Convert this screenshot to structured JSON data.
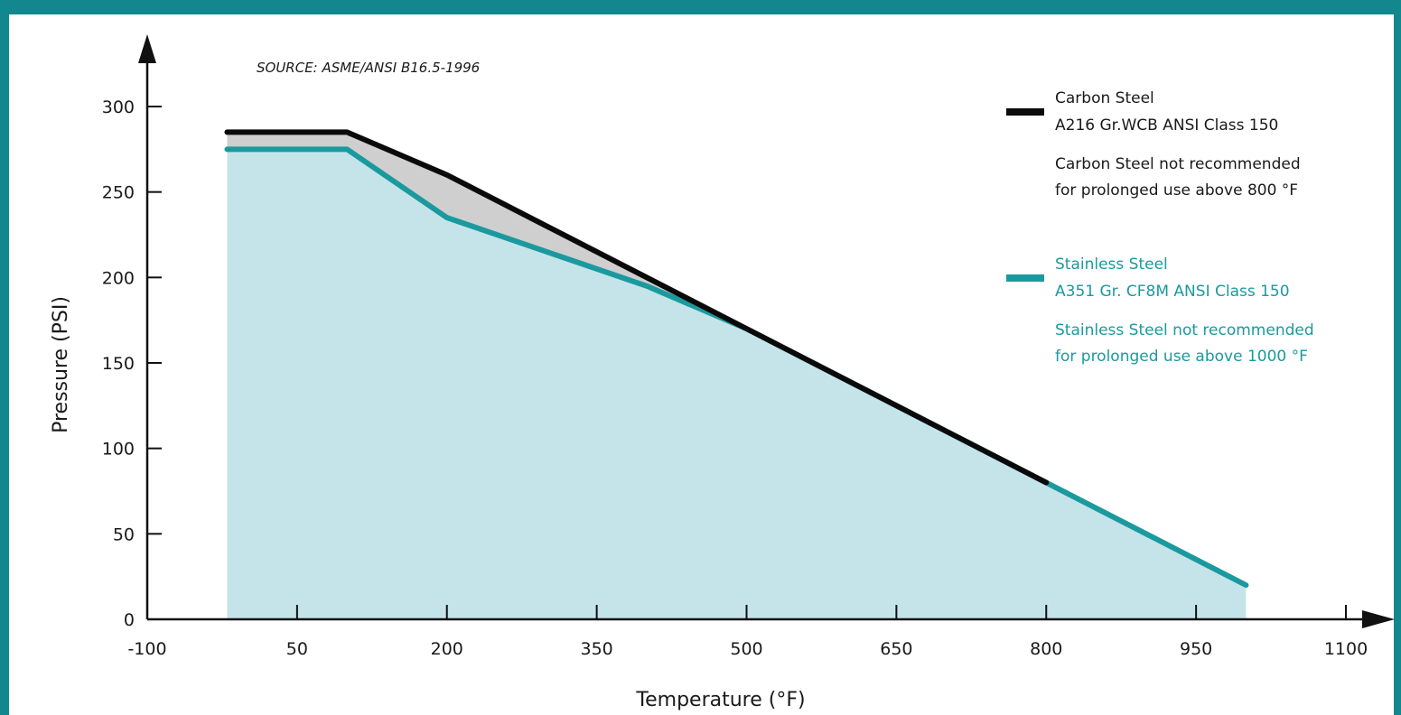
{
  "colors": {
    "frame": "#12888e",
    "carbon": "#0a0a0a",
    "stainless": "#1a9a9e",
    "fill": "#c5e4ea",
    "gap_fill": "#cfcfcf"
  },
  "chart_data": {
    "type": "area",
    "source": "SOURCE: ASME/ANSI B16.5-1996",
    "xlabel": "Temperature (°F)",
    "ylabel": "Pressure (PSI)",
    "xlim": [
      -100,
      1150
    ],
    "ylim": [
      0,
      330
    ],
    "xticks": [
      -100,
      50,
      200,
      350,
      500,
      650,
      800,
      950,
      1100
    ],
    "xtick_labels": [
      "-100",
      "50",
      "200",
      "350",
      "500",
      "650",
      "800",
      "950",
      "1100"
    ],
    "yticks": [
      0,
      50,
      100,
      150,
      200,
      250,
      300
    ],
    "ytick_labels": [
      "0",
      "50",
      "100",
      "150",
      "200",
      "250",
      "300"
    ],
    "grid": false,
    "legend_position": "right",
    "series": [
      {
        "name": "Carbon Steel",
        "x": [
          -20,
          100,
          200,
          300,
          400,
          500,
          600,
          700,
          800
        ],
        "y": [
          285,
          285,
          260,
          230,
          200,
          170,
          140,
          110,
          80
        ]
      },
      {
        "name": "Stainless Steel",
        "x": [
          -20,
          100,
          200,
          300,
          400,
          500,
          600,
          700,
          800,
          900,
          1000
        ],
        "y": [
          275,
          275,
          235,
          215,
          195,
          170,
          140,
          110,
          80,
          50,
          20
        ]
      }
    ],
    "legend": [
      {
        "series": "Carbon Steel",
        "lines": [
          "Carbon Steel",
          "A216 Gr.WCB ANSI Class 150",
          "Carbon Steel not recommended",
          "for prolonged use above 800 °F"
        ]
      },
      {
        "series": "Stainless Steel",
        "lines": [
          "Stainless Steel",
          "A351 Gr. CF8M ANSI Class 150",
          "Stainless Steel not recommended",
          "for prolonged use above 1000 °F"
        ]
      }
    ]
  }
}
